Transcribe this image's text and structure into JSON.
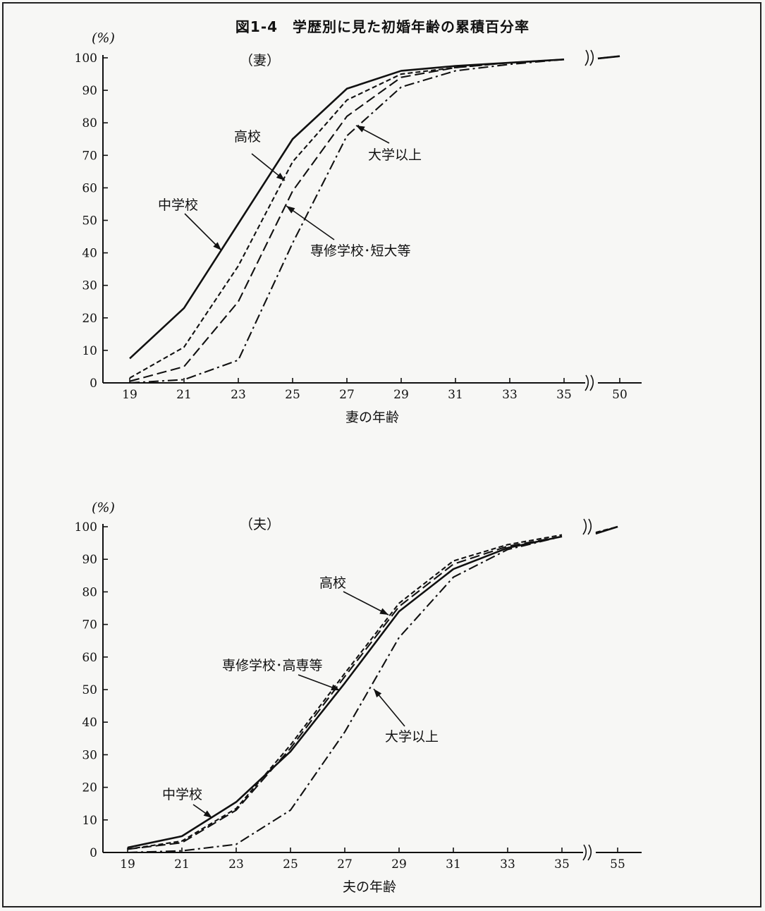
{
  "figure_title": "図1-4　学歴別に見た初婚年齢の累積百分率",
  "chart_data": [
    {
      "type": "line",
      "panel_label": "（妻）",
      "ylabel": "(%)",
      "xlabel": "妻の年齢",
      "x_ticks": [
        "19",
        "21",
        "23",
        "25",
        "27",
        "29",
        "31",
        "33",
        "35",
        "50"
      ],
      "y_ticks": [
        "0",
        "10",
        "20",
        "30",
        "40",
        "50",
        "60",
        "70",
        "80",
        "90",
        "100"
      ],
      "ylim": [
        0,
        100
      ],
      "x_axis_break": true,
      "series": [
        {
          "name": "中学校",
          "style": "solid",
          "values": [
            7.5,
            23,
            49,
            75,
            90.5,
            96,
            97.5,
            98.5,
            99.5,
            100.5
          ]
        },
        {
          "name": "高校",
          "style": "dashed",
          "values": [
            1.5,
            11,
            36,
            68,
            87,
            95,
            97,
            98.5,
            99.5,
            100.5
          ]
        },
        {
          "name": "専修学校･短大等",
          "style": "longdash",
          "values": [
            0.5,
            5,
            25,
            59,
            82,
            94,
            97,
            98.5,
            99.5,
            100.5
          ]
        },
        {
          "name": "大学以上",
          "style": "dashdot",
          "values": [
            0,
            1,
            7,
            43,
            76,
            91,
            96,
            98,
            99.5,
            100.5
          ]
        }
      ],
      "annotations": [
        {
          "text": "中学校",
          "target_series": "中学校"
        },
        {
          "text": "高校",
          "target_series": "高校"
        },
        {
          "text": "専修学校･短大等",
          "target_series": "専修学校･短大等"
        },
        {
          "text": "大学以上",
          "target_series": "大学以上"
        }
      ]
    },
    {
      "type": "line",
      "panel_label": "（夫）",
      "ylabel": "(%)",
      "xlabel": "夫の年齢",
      "x_ticks": [
        "19",
        "21",
        "23",
        "25",
        "27",
        "29",
        "31",
        "33",
        "35",
        "55"
      ],
      "y_ticks": [
        "0",
        "10",
        "20",
        "30",
        "40",
        "50",
        "60",
        "70",
        "80",
        "90",
        "100"
      ],
      "ylim": [
        0,
        100
      ],
      "x_axis_break": true,
      "series": [
        {
          "name": "中学校",
          "style": "solid",
          "values": [
            1.5,
            5,
            15.5,
            31,
            52,
            74,
            87,
            93.5,
            97,
            100
          ]
        },
        {
          "name": "高校",
          "style": "dashed",
          "values": [
            1,
            3.5,
            13.5,
            33,
            55,
            76.5,
            89.5,
            94.5,
            97.5,
            100
          ]
        },
        {
          "name": "専修学校･高専等",
          "style": "longdash",
          "values": [
            1,
            3,
            13,
            32,
            54,
            75.5,
            88.5,
            94,
            97,
            100
          ]
        },
        {
          "name": "大学以上",
          "style": "dashdot",
          "values": [
            0,
            0.5,
            2.5,
            13,
            37,
            66,
            84.5,
            93,
            97,
            100
          ]
        }
      ],
      "annotations": [
        {
          "text": "中学校",
          "target_series": "中学校"
        },
        {
          "text": "高校",
          "target_series": "高校"
        },
        {
          "text": "専修学校･高専等",
          "target_series": "専修学校･高専等"
        },
        {
          "text": "大学以上",
          "target_series": "大学以上"
        }
      ]
    }
  ]
}
